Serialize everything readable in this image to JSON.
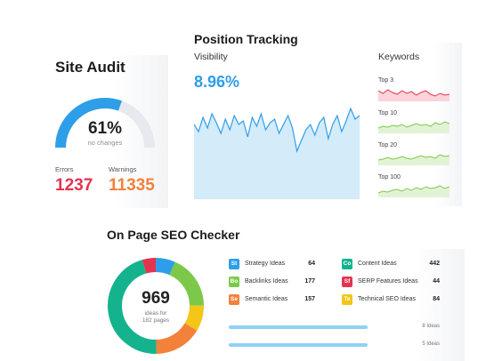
{
  "site_audit": {
    "title": "Site Audit",
    "percent": "61%",
    "percent_value": 61,
    "subtitle": "no changes",
    "errors_label": "Errors",
    "errors_value": "1237",
    "warnings_label": "Warnings",
    "warnings_value": "11335",
    "colors": {
      "gauge_fill": "#2f9ee8",
      "gauge_track": "#e7e9ee",
      "errors": "#e3344f",
      "warnings": "#f2813a"
    }
  },
  "position_tracking": {
    "title": "Position Tracking",
    "visibility_label": "Visibility",
    "visibility_value": "8.96%",
    "colors": {
      "line": "#2f9ee8",
      "area": "#d4ebfa"
    },
    "keywords": {
      "title": "Keywords",
      "rows": [
        {
          "label": "Top 3",
          "color": "#e3344f",
          "fill": "#fad4da"
        },
        {
          "label": "Top 10",
          "color": "#7cc94a",
          "fill": "#e2f3d5"
        },
        {
          "label": "Top 20",
          "color": "#7cc94a",
          "fill": "#e2f3d5"
        },
        {
          "label": "Top 100",
          "color": "#7cc94a",
          "fill": "#e2f3d5"
        }
      ]
    }
  },
  "seo_checker": {
    "title": "On Page SEO Checker",
    "total": "969",
    "total_sub_line1": "ideas for",
    "total_sub_line2": "182 pages",
    "ideas": [
      {
        "abbr": "St",
        "label": "Strategy Ideas",
        "count": "64",
        "color": "#2f9ee8"
      },
      {
        "abbr": "Co",
        "label": "Content Ideas",
        "count": "442",
        "color": "#14b38e"
      },
      {
        "abbr": "Bo",
        "label": "Backlinks Ideas",
        "count": "177",
        "color": "#7cc94a"
      },
      {
        "abbr": "Sf",
        "label": "SERP Features Ideas",
        "count": "44",
        "color": "#e3344f"
      },
      {
        "abbr": "Se",
        "label": "Semantic Ideas",
        "count": "157",
        "color": "#f2813a"
      },
      {
        "abbr": "Te",
        "label": "Technical SEO Ideas",
        "count": "84",
        "color": "#f5c518"
      }
    ],
    "bars": [
      {
        "label": "8 Ideas",
        "fraction": 0.85
      },
      {
        "label": "5 Ideas",
        "fraction": 0.85
      }
    ],
    "donut_segments": [
      {
        "name": "Strategy",
        "value": 64,
        "color": "#2f9ee8"
      },
      {
        "name": "Backlinks",
        "value": 177,
        "color": "#7cc94a"
      },
      {
        "name": "Technical",
        "value": 84,
        "color": "#f5c518"
      },
      {
        "name": "Semantic",
        "value": 157,
        "color": "#f2813a"
      },
      {
        "name": "Content",
        "value": 442,
        "color": "#14b38e"
      },
      {
        "name": "SERP",
        "value": 44,
        "color": "#e3344f"
      }
    ]
  }
}
